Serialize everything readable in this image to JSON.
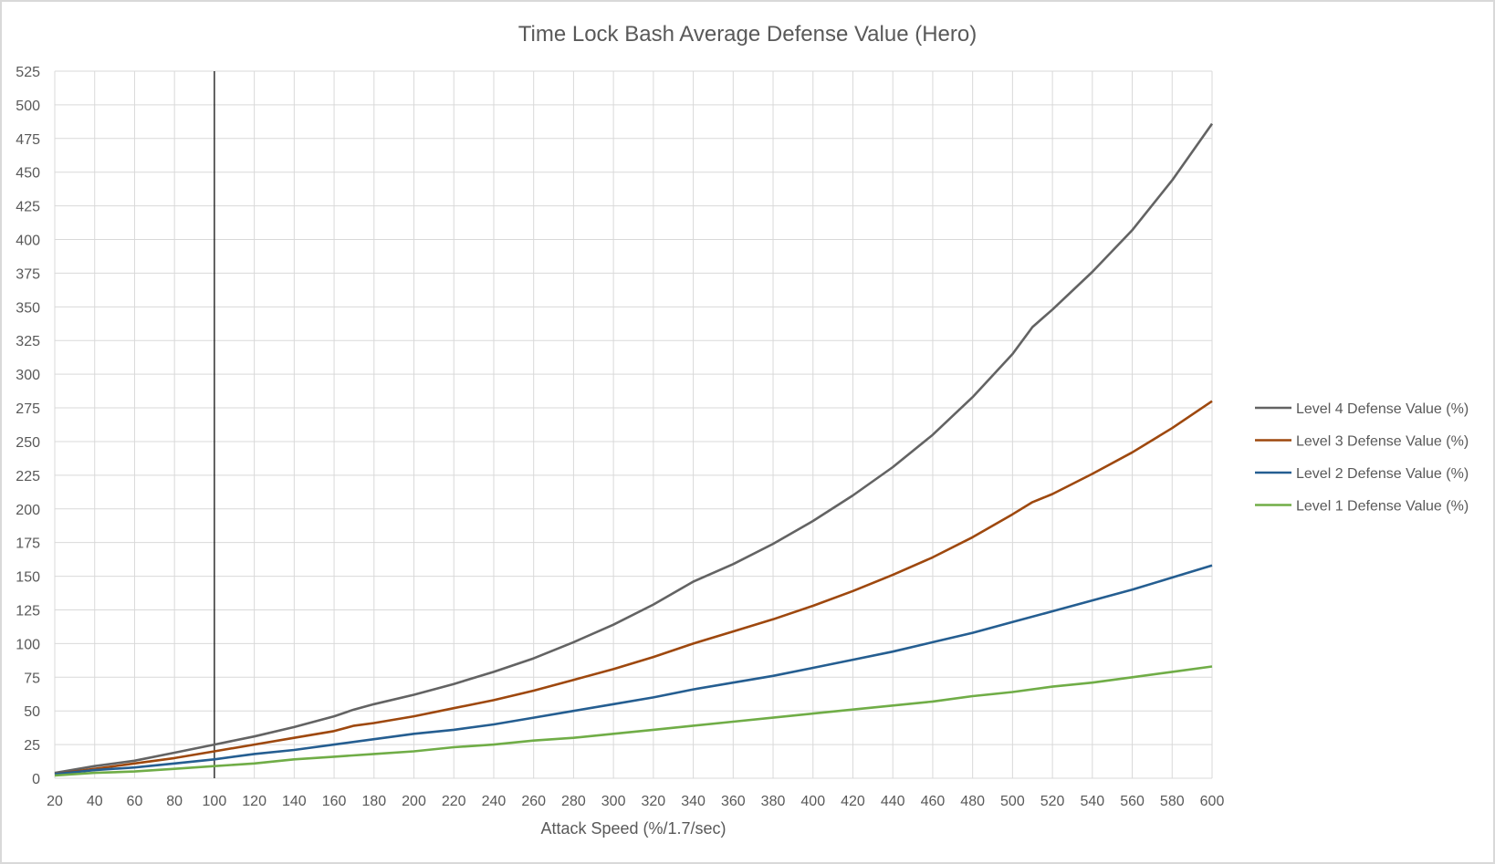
{
  "chart_data": {
    "type": "line",
    "title": "Time Lock Bash Average Defense Value (Hero)",
    "xlabel": "Attack Speed (%/1.7/sec)",
    "ylabel": "",
    "xlim": [
      20,
      600
    ],
    "ylim": [
      0,
      525
    ],
    "xticks": [
      20,
      40,
      60,
      80,
      100,
      120,
      140,
      160,
      180,
      200,
      220,
      240,
      260,
      280,
      300,
      320,
      340,
      360,
      380,
      400,
      420,
      440,
      460,
      480,
      500,
      520,
      540,
      560,
      580,
      600
    ],
    "yticks": [
      0,
      25,
      50,
      75,
      100,
      125,
      150,
      175,
      200,
      225,
      250,
      275,
      300,
      325,
      350,
      375,
      400,
      425,
      450,
      475,
      500,
      525
    ],
    "grid": true,
    "legend_position": "right",
    "reference_line_x": 100,
    "series": [
      {
        "name": "Level 4 Defense Value (%)",
        "color": "#636363",
        "x": [
          20,
          40,
          60,
          80,
          100,
          120,
          140,
          160,
          170,
          180,
          200,
          220,
          240,
          260,
          280,
          300,
          320,
          340,
          360,
          380,
          400,
          420,
          440,
          460,
          480,
          500,
          510,
          520,
          540,
          560,
          580,
          600
        ],
        "y": [
          4,
          9,
          13,
          19,
          25,
          31,
          38,
          46,
          51,
          55,
          62,
          70,
          79,
          89,
          101,
          114,
          129,
          146,
          159,
          174,
          191,
          210,
          231,
          255,
          283,
          315,
          335,
          348,
          376,
          407,
          444,
          486
        ]
      },
      {
        "name": "Level 3 Defense Value (%)",
        "color": "#9e480e",
        "x": [
          20,
          40,
          60,
          80,
          100,
          120,
          140,
          160,
          170,
          180,
          200,
          220,
          240,
          260,
          280,
          300,
          320,
          340,
          360,
          380,
          400,
          420,
          440,
          460,
          480,
          500,
          510,
          520,
          540,
          560,
          580,
          600
        ],
        "y": [
          3,
          7,
          11,
          15,
          20,
          25,
          30,
          35,
          39,
          41,
          46,
          52,
          58,
          65,
          73,
          81,
          90,
          100,
          109,
          118,
          128,
          139,
          151,
          164,
          179,
          196,
          205,
          211,
          226,
          242,
          260,
          280
        ]
      },
      {
        "name": "Level 2 Defense Value (%)",
        "color": "#255e91",
        "x": [
          20,
          40,
          60,
          80,
          100,
          120,
          140,
          160,
          180,
          200,
          220,
          240,
          260,
          280,
          300,
          320,
          340,
          360,
          380,
          400,
          420,
          440,
          460,
          480,
          500,
          520,
          540,
          560,
          580,
          600
        ],
        "y": [
          3,
          6,
          8,
          11,
          14,
          18,
          21,
          25,
          29,
          33,
          36,
          40,
          45,
          50,
          55,
          60,
          66,
          71,
          76,
          82,
          88,
          94,
          101,
          108,
          116,
          124,
          132,
          140,
          149,
          158
        ]
      },
      {
        "name": "Level 1 Defense Value (%)",
        "color": "#70ad47",
        "x": [
          20,
          40,
          60,
          80,
          100,
          120,
          140,
          160,
          180,
          200,
          220,
          240,
          260,
          280,
          300,
          320,
          340,
          360,
          380,
          400,
          420,
          440,
          460,
          480,
          500,
          520,
          540,
          560,
          580,
          600
        ],
        "y": [
          2,
          4,
          5,
          7,
          9,
          11,
          14,
          16,
          18,
          20,
          23,
          25,
          28,
          30,
          33,
          36,
          39,
          42,
          45,
          48,
          51,
          54,
          57,
          61,
          64,
          68,
          71,
          75,
          79,
          83
        ]
      }
    ]
  }
}
